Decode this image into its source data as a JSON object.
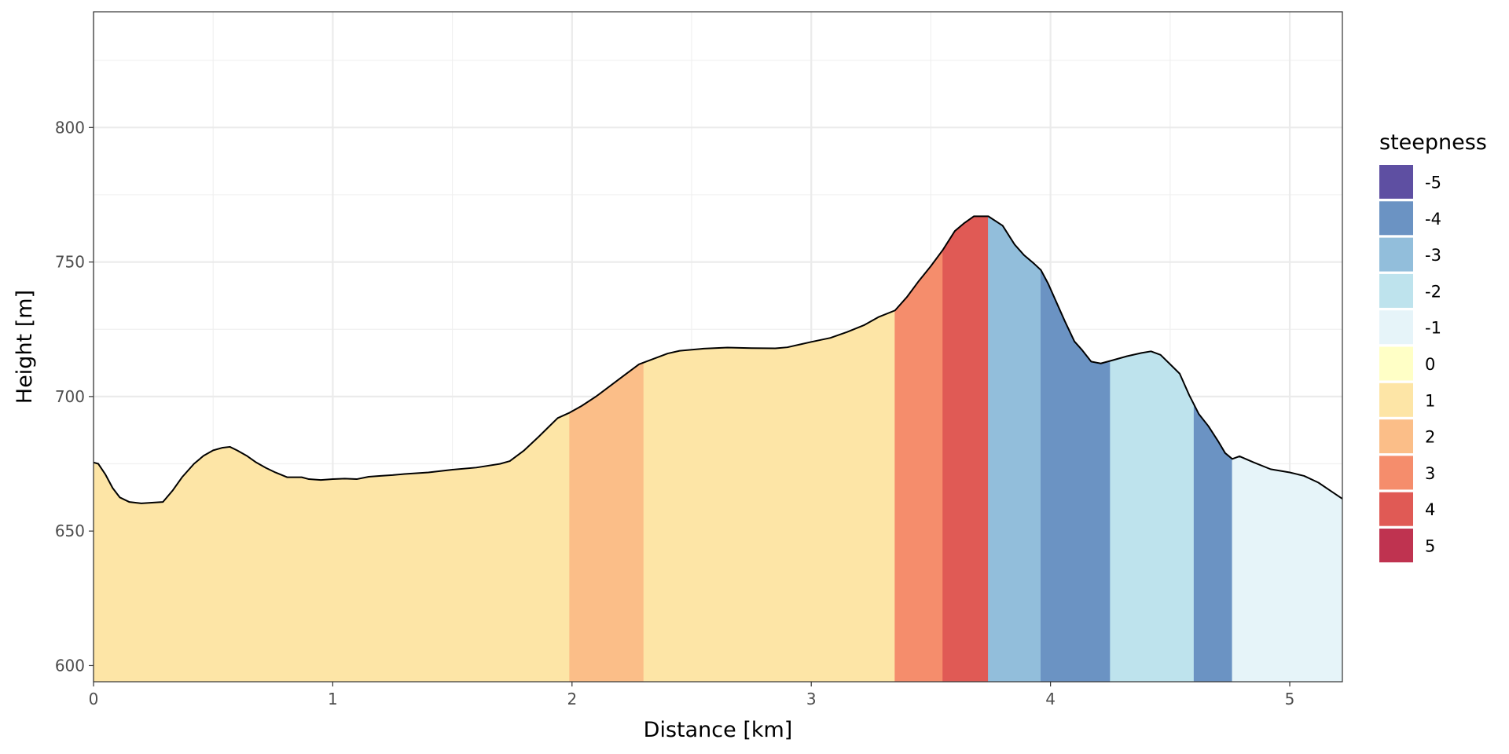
{
  "chart_data": {
    "type": "area",
    "xlabel": "Distance [km]",
    "ylabel": "Height [m]",
    "xlim": [
      0,
      5.22
    ],
    "ylim": [
      594,
      843
    ],
    "x_ticks": [
      0,
      1,
      2,
      3,
      4,
      5
    ],
    "x_tick_labels": [
      "0",
      "1",
      "2",
      "3",
      "4",
      "5"
    ],
    "y_ticks": [
      600,
      650,
      700,
      750,
      800
    ],
    "y_tick_labels": [
      "600",
      "650",
      "700",
      "750",
      "800"
    ],
    "grid": true,
    "legend": {
      "title": "steepness",
      "placement": "right",
      "entries": [
        {
          "label": "-5",
          "color": "#5e4fa2"
        },
        {
          "label": "-4",
          "color": "#6b93c3"
        },
        {
          "label": "-3",
          "color": "#92bedb"
        },
        {
          "label": "-2",
          "color": "#bee3ed"
        },
        {
          "label": "-1",
          "color": "#e6f4f9"
        },
        {
          "label": "0",
          "color": "#ffffc6"
        },
        {
          "label": "1",
          "color": "#fde5a6"
        },
        {
          "label": "2",
          "color": "#fbbe88"
        },
        {
          "label": "3",
          "color": "#f58d6c"
        },
        {
          "label": "4",
          "color": "#e05a55"
        },
        {
          "label": "5",
          "color": "#bf3350"
        }
      ]
    },
    "profile": [
      [
        0.0,
        675.5
      ],
      [
        0.02,
        675.0
      ],
      [
        0.05,
        671.0
      ],
      [
        0.08,
        666.0
      ],
      [
        0.11,
        662.5
      ],
      [
        0.15,
        660.8
      ],
      [
        0.2,
        660.3
      ],
      [
        0.25,
        660.6
      ],
      [
        0.29,
        660.8
      ],
      [
        0.33,
        665.0
      ],
      [
        0.37,
        670.0
      ],
      [
        0.42,
        675.0
      ],
      [
        0.46,
        678.0
      ],
      [
        0.5,
        680.0
      ],
      [
        0.54,
        681.0
      ],
      [
        0.57,
        681.3
      ],
      [
        0.6,
        680.0
      ],
      [
        0.64,
        678.0
      ],
      [
        0.68,
        675.5
      ],
      [
        0.72,
        673.5
      ],
      [
        0.76,
        671.8
      ],
      [
        0.81,
        670.0
      ],
      [
        0.87,
        670.0
      ],
      [
        0.9,
        669.3
      ],
      [
        0.95,
        669.0
      ],
      [
        1.0,
        669.3
      ],
      [
        1.05,
        669.5
      ],
      [
        1.1,
        669.3
      ],
      [
        1.15,
        670.2
      ],
      [
        1.2,
        670.5
      ],
      [
        1.25,
        670.8
      ],
      [
        1.3,
        671.2
      ],
      [
        1.4,
        671.8
      ],
      [
        1.5,
        672.8
      ],
      [
        1.6,
        673.6
      ],
      [
        1.7,
        675.0
      ],
      [
        1.74,
        676.0
      ],
      [
        1.8,
        680.0
      ],
      [
        1.86,
        685.0
      ],
      [
        1.9,
        688.5
      ],
      [
        1.94,
        692.0
      ],
      [
        1.99,
        694.0
      ],
      [
        2.04,
        696.5
      ],
      [
        2.1,
        700.0
      ],
      [
        2.16,
        704.0
      ],
      [
        2.22,
        708.0
      ],
      [
        2.28,
        712.0
      ],
      [
        2.34,
        714.0
      ],
      [
        2.4,
        716.0
      ],
      [
        2.45,
        717.0
      ],
      [
        2.55,
        717.8
      ],
      [
        2.65,
        718.2
      ],
      [
        2.75,
        718.0
      ],
      [
        2.85,
        717.9
      ],
      [
        2.9,
        718.3
      ],
      [
        2.95,
        719.3
      ],
      [
        3.0,
        720.3
      ],
      [
        3.08,
        721.8
      ],
      [
        3.15,
        724.0
      ],
      [
        3.22,
        726.5
      ],
      [
        3.28,
        729.5
      ],
      [
        3.35,
        732.0
      ],
      [
        3.4,
        737.0
      ],
      [
        3.45,
        743.0
      ],
      [
        3.5,
        748.5
      ],
      [
        3.55,
        754.5
      ],
      [
        3.6,
        761.5
      ],
      [
        3.64,
        764.5
      ],
      [
        3.68,
        767.0
      ],
      [
        3.74,
        767.0
      ],
      [
        3.8,
        763.5
      ],
      [
        3.85,
        756.5
      ],
      [
        3.89,
        752.5
      ],
      [
        3.93,
        749.5
      ],
      [
        3.96,
        747.0
      ],
      [
        3.99,
        742.0
      ],
      [
        4.02,
        736.0
      ],
      [
        4.06,
        728.0
      ],
      [
        4.1,
        720.5
      ],
      [
        4.13,
        717.5
      ],
      [
        4.17,
        713.0
      ],
      [
        4.21,
        712.3
      ],
      [
        4.26,
        713.5
      ],
      [
        4.32,
        715.0
      ],
      [
        4.38,
        716.2
      ],
      [
        4.42,
        716.8
      ],
      [
        4.46,
        715.5
      ],
      [
        4.5,
        712.0
      ],
      [
        4.54,
        708.5
      ],
      [
        4.58,
        700.5
      ],
      [
        4.62,
        693.5
      ],
      [
        4.66,
        689.0
      ],
      [
        4.7,
        683.5
      ],
      [
        4.73,
        679.0
      ],
      [
        4.76,
        676.8
      ],
      [
        4.79,
        677.8
      ],
      [
        4.85,
        675.5
      ],
      [
        4.92,
        673.0
      ],
      [
        5.0,
        671.8
      ],
      [
        5.06,
        670.5
      ],
      [
        5.12,
        668.0
      ],
      [
        5.17,
        665.0
      ],
      [
        5.22,
        662.0
      ]
    ],
    "segments": [
      {
        "from": 0.0,
        "to": 1.99,
        "steepness": "1"
      },
      {
        "from": 1.99,
        "to": 2.3,
        "steepness": "2"
      },
      {
        "from": 2.3,
        "to": 3.35,
        "steepness": "1"
      },
      {
        "from": 3.35,
        "to": 3.55,
        "steepness": "3"
      },
      {
        "from": 3.55,
        "to": 3.74,
        "steepness": "4"
      },
      {
        "from": 3.74,
        "to": 3.96,
        "steepness": "-3"
      },
      {
        "from": 3.96,
        "to": 4.25,
        "steepness": "-4"
      },
      {
        "from": 4.25,
        "to": 4.6,
        "steepness": "-2"
      },
      {
        "from": 4.6,
        "to": 4.76,
        "steepness": "-4"
      },
      {
        "from": 4.76,
        "to": 5.22,
        "steepness": "-1"
      }
    ]
  }
}
